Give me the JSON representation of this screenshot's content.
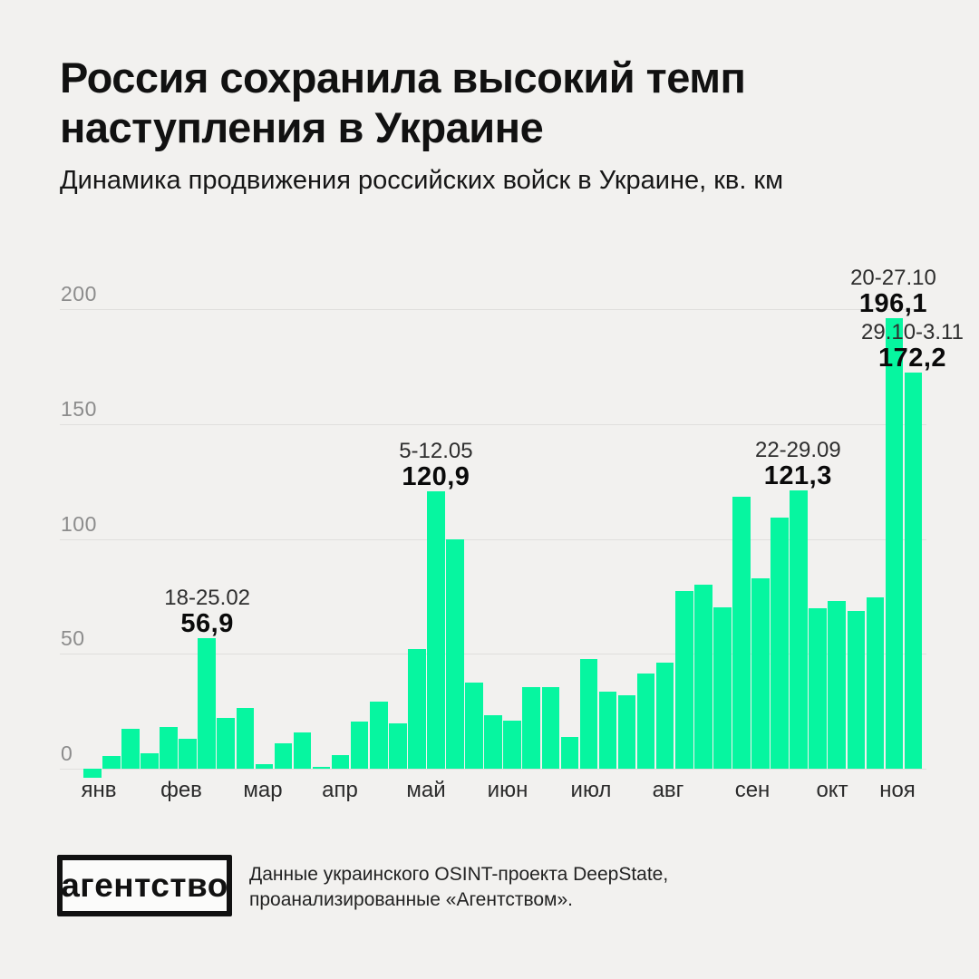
{
  "header": {
    "title_line1": "Россия сохранила высокий темп",
    "title_line2": "наступления в Украине",
    "subtitle": "Динамика продвижения российских войск в Украине, кв. км"
  },
  "chart_data": {
    "type": "bar",
    "title": "Динамика продвижения российских войск в Украине, кв. км",
    "unit": "кв. км",
    "bar_color": "#06F6A0",
    "background_color": "#F2F1EF",
    "gridline_color": "#E0DFDD",
    "ylim": [
      0,
      200
    ],
    "yticks": [
      0,
      50,
      100,
      150,
      200
    ],
    "grid": "horizontal",
    "categories_months": [
      "янв",
      "фев",
      "мар",
      "апр",
      "май",
      "июн",
      "июл",
      "авг",
      "сен",
      "окт",
      "ноя"
    ],
    "values_weekly_sq_km": [
      -4,
      5.4,
      17.2,
      6.6,
      18.3,
      13,
      56.9,
      22.2,
      26.4,
      1.9,
      11,
      15.7,
      0.9,
      5.8,
      20.5,
      29.2,
      19.8,
      52.1,
      120.9,
      100,
      37.5,
      23.3,
      20.9,
      35.4,
      35.4,
      13.9,
      47.6,
      33.4,
      32,
      41.3,
      46.2,
      77.4,
      80.1,
      70.2,
      118.2,
      83,
      109.3,
      121.3,
      70,
      73,
      68.5,
      74.5,
      196.1,
      172.2
    ],
    "annotations": [
      {
        "date": "18-25.02",
        "value": "56,9",
        "bar_index": 6
      },
      {
        "date": "5-12.05",
        "value": "120,9",
        "bar_index": 18
      },
      {
        "date": "22-29.09",
        "value": "121,3",
        "bar_index": 37
      },
      {
        "date": "20-27.10",
        "value": "196,1",
        "bar_index": 42
      },
      {
        "date": "29.10-3.11",
        "value": "172,2",
        "bar_index": 43
      }
    ]
  },
  "footer": {
    "logo_text": "агентство",
    "source_line1": "Данные украинского OSINT-проекта DeepState,",
    "source_line2": "проанализированные «Агентством»."
  }
}
